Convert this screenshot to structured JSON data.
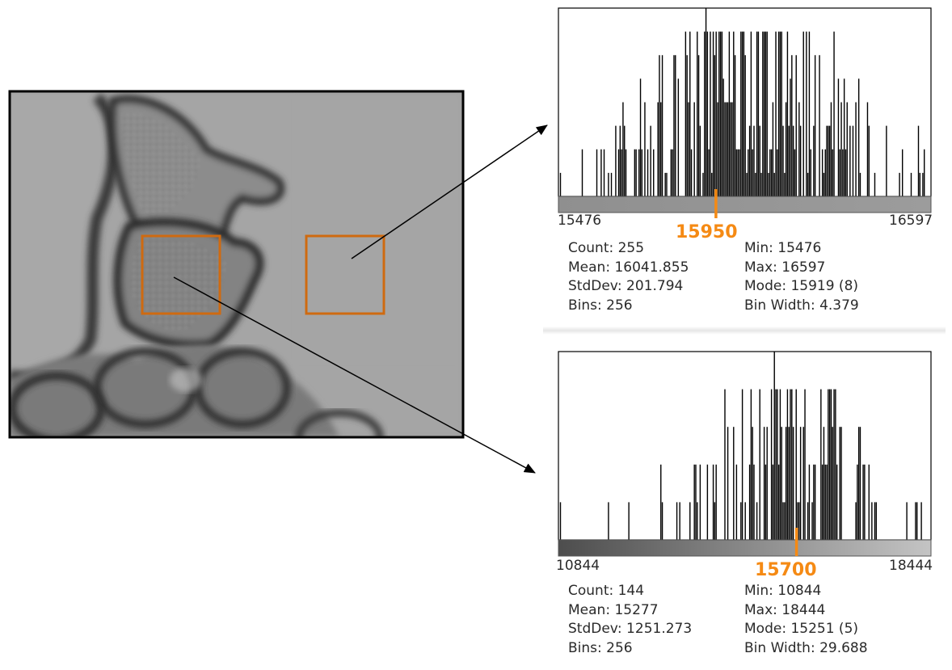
{
  "colors": {
    "roi": "#cf6a10",
    "marker": "#f58a14",
    "bar": "#000000"
  },
  "chart_data": [
    {
      "type": "bar",
      "name": "histogram-top",
      "x_min": 15476,
      "x_max": 16597,
      "marker_value": 15950,
      "marker_label": "15950",
      "axis_min_label": "15476",
      "axis_max_label": "16597",
      "stats": {
        "count": "Count: 255",
        "mean": "Mean: 16041.855",
        "stddev": "StdDev: 201.794",
        "bins": "Bins: 256",
        "min": "Min: 15476",
        "max": "Max: 16597",
        "mode": "Mode: 15919 (8)",
        "binwidth": "Bin Width: 4.379"
      },
      "mode_value": 15919,
      "mode_count": 8,
      "max_count": 8
    },
    {
      "type": "bar",
      "name": "histogram-bottom",
      "x_min": 10844,
      "x_max": 18444,
      "marker_value": 15700,
      "marker_label": "15700",
      "axis_min_label": "10844",
      "axis_max_label": "18444",
      "stats": {
        "count": "Count: 144",
        "mean": "Mean: 15277",
        "stddev": "StdDev: 1251.273",
        "bins": "Bins: 256",
        "min": "Min: 10844",
        "max": "Max: 18444",
        "mode": "Mode: 15251 (5)",
        "binwidth": "Bin Width: 29.688"
      },
      "mode_value": 15251,
      "mode_count": 5,
      "max_count": 5
    }
  ]
}
